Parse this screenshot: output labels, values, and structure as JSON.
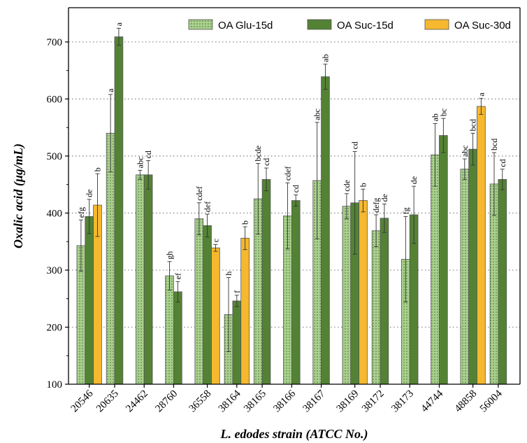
{
  "chart_data": {
    "type": "bar",
    "title": "",
    "xlabel": "L. edodes strain (ATCC No.)",
    "ylabel": "Oxalic acid (μg/mL)",
    "ylim": [
      100,
      760
    ],
    "yticks": [
      100,
      200,
      300,
      400,
      500,
      600,
      700
    ],
    "grid": "horizontal dotted",
    "legend_position": "top-right",
    "categories": [
      "20546",
      "20635",
      "24462",
      "28760",
      "36558",
      "38164",
      "38165",
      "38166",
      "38167",
      "38169",
      "38172",
      "38173",
      "44744",
      "48858",
      "56004"
    ],
    "colors": {
      "glu15": "#a9d08e",
      "suc15": "#548235",
      "suc30": "#f5b82e"
    },
    "series": [
      {
        "name": "OA Glu-15d",
        "values": [
          343,
          540,
          467,
          290,
          390,
          222,
          425,
          395,
          457,
          412,
          369,
          319,
          502,
          477,
          451
        ],
        "errors": [
          45,
          68,
          8,
          25,
          28,
          65,
          62,
          58,
          102,
          22,
          28,
          75,
          55,
          18,
          55
        ],
        "letters": [
          "efg",
          "a",
          "abc",
          "gh",
          "cdef",
          "h",
          "bcde",
          "cdef",
          "abc",
          "cde",
          "defg",
          "fg",
          "ab",
          "abc",
          "bcd"
        ]
      },
      {
        "name": "OA Suc-15d",
        "values": [
          394,
          709,
          467,
          262,
          378,
          246,
          459,
          422,
          639,
          418,
          391,
          397,
          536,
          512,
          459
        ],
        "errors": [
          30,
          15,
          25,
          18,
          20,
          10,
          20,
          10,
          22,
          90,
          25,
          50,
          30,
          28,
          18
        ],
        "letters": [
          "de",
          "a",
          "cd",
          "ef",
          "def",
          "f",
          "cd",
          "cd",
          "ab",
          "cd",
          "de",
          "de",
          "bc",
          "bcd",
          "cd"
        ]
      },
      {
        "name": "OA Suc-30d",
        "values": [
          414,
          null,
          null,
          null,
          339,
          356,
          null,
          null,
          null,
          422,
          null,
          null,
          null,
          587,
          null
        ],
        "errors": [
          55,
          null,
          null,
          null,
          6,
          20,
          null,
          null,
          null,
          20,
          null,
          null,
          null,
          14,
          null
        ],
        "letters": [
          "b",
          null,
          null,
          null,
          "c",
          "b",
          null,
          null,
          null,
          "b",
          null,
          null,
          null,
          "a",
          null
        ]
      }
    ]
  }
}
